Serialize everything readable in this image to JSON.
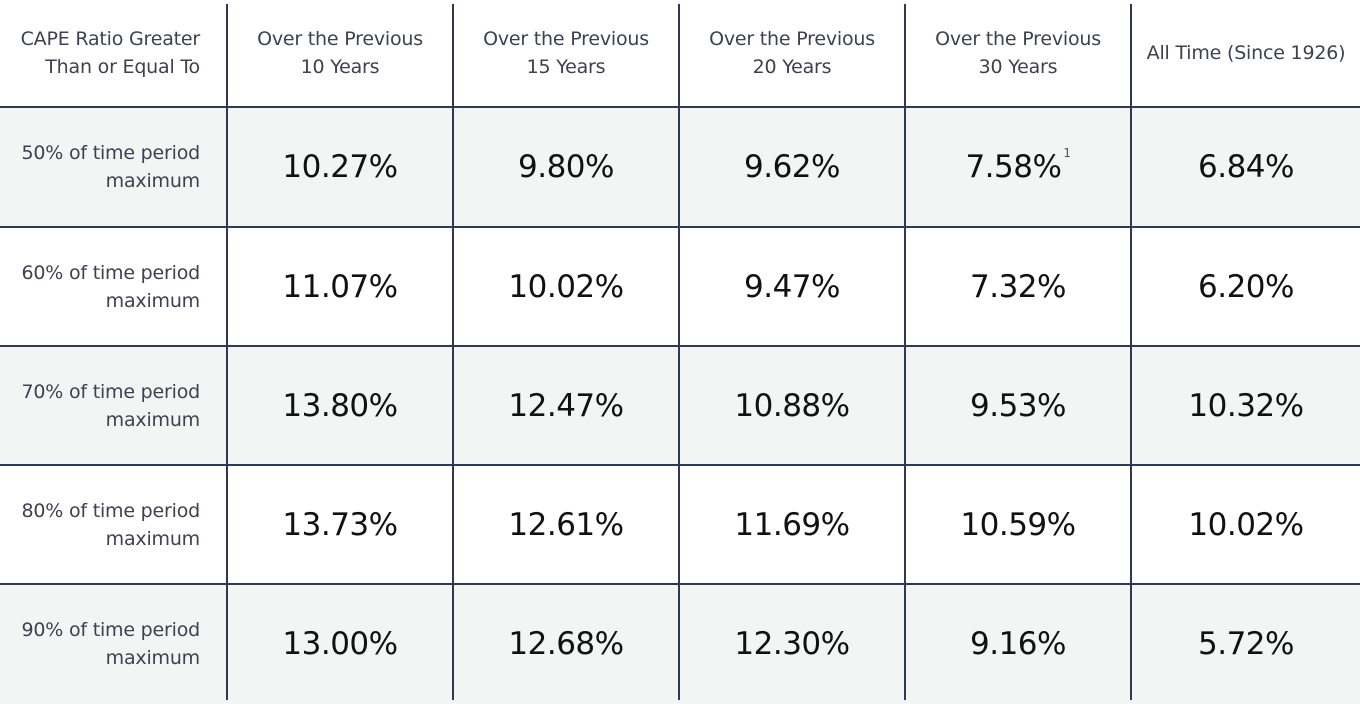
{
  "table": {
    "columns": [
      "CAPE Ratio Greater\nThan or Equal To",
      "Over the Previous\n10 Years",
      "Over the Previous\n15 Years",
      "Over the Previous\n20 Years",
      "Over the Previous\n30 Years",
      "All Time (Since 1926)"
    ],
    "rows": [
      {
        "label": "50% of time period\nmaximum",
        "values": [
          "10.27%",
          "9.80%",
          "9.62%",
          "7.58%",
          "6.84%"
        ],
        "footnote": "1"
      },
      {
        "label": "60% of time period\nmaximum",
        "values": [
          "11.07%",
          "10.02%",
          "9.47%",
          "7.32%",
          "6.20%"
        ]
      },
      {
        "label": "70% of time period\nmaximum",
        "values": [
          "13.80%",
          "12.47%",
          "10.88%",
          "9.53%",
          "10.32%"
        ]
      },
      {
        "label": "80% of time period\nmaximum",
        "values": [
          "13.73%",
          "12.61%",
          "11.69%",
          "10.59%",
          "10.02%"
        ]
      },
      {
        "label": "90% of time period\nmaximum",
        "values": [
          "13.00%",
          "12.68%",
          "12.30%",
          "9.16%",
          "5.72%"
        ]
      }
    ]
  },
  "colors": {
    "line": "#2f3a52",
    "shaded_row": "#f3f5f4",
    "header_text": "#3d4150",
    "value_text": "#111111"
  }
}
